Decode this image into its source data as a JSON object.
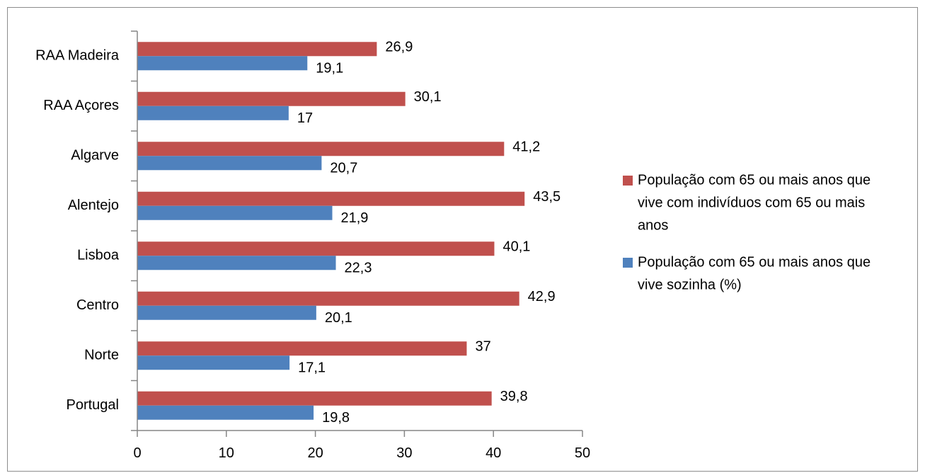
{
  "chart_data": {
    "type": "bar",
    "orientation": "horizontal",
    "categories": [
      "RAA Madeira",
      "RAA Açores",
      "Algarve",
      "Alentejo",
      "Lisboa",
      "Centro",
      "Norte",
      "Portugal"
    ],
    "series": [
      {
        "name": "População com 65 ou mais anos que vive com indivíduos com 65 ou mais anos",
        "name_lines": [
          "População com 65 ou mais anos que",
          "vive com indivíduos com 65 ou mais",
          "anos"
        ],
        "color": "#c0504d",
        "values": [
          26.9,
          30.1,
          41.2,
          43.5,
          40.1,
          42.9,
          37,
          39.8
        ],
        "labels": [
          "26,9",
          "30,1",
          "41,2",
          "43,5",
          "40,1",
          "42,9",
          "37",
          "39,8"
        ]
      },
      {
        "name": "População com 65 ou mais anos que vive sozinha (%)",
        "name_lines": [
          "População com 65 ou mais anos que",
          "vive sozinha (%)"
        ],
        "color": "#4f81bd",
        "values": [
          19.1,
          17,
          20.7,
          21.9,
          22.3,
          20.1,
          17.1,
          19.8
        ],
        "labels": [
          "19,1",
          "17",
          "20,7",
          "21,9",
          "22,3",
          "20,1",
          "17,1",
          "19,8"
        ]
      }
    ],
    "xlim": [
      0,
      50
    ],
    "xticks": [
      0,
      10,
      20,
      30,
      40,
      50
    ],
    "title": "",
    "xlabel": "",
    "ylabel": "",
    "grid": false,
    "legend_position": "right"
  }
}
